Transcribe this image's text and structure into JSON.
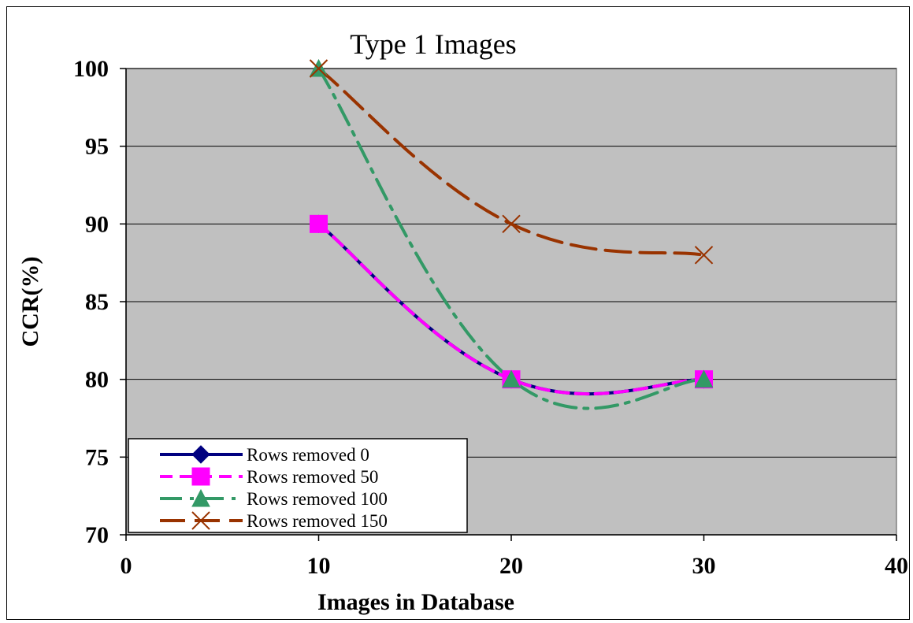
{
  "chart_data": {
    "type": "line",
    "title": "Type 1 Images",
    "xlabel": "Images in Database",
    "ylabel": "CCR(%)",
    "xlim": [
      0,
      40
    ],
    "ylim": [
      70,
      100
    ],
    "x_ticks": [
      0,
      10,
      20,
      30,
      40
    ],
    "y_ticks": [
      70,
      75,
      80,
      85,
      90,
      95,
      100
    ],
    "grid": "horizontal",
    "plot_background": "#c0c0c0",
    "legend_position": "bottom-left",
    "series": [
      {
        "name": "Rows removed 0",
        "x": [
          10,
          20,
          30
        ],
        "values": [
          90,
          80,
          80
        ],
        "color": "#000080",
        "marker": "diamond",
        "dash": "solid"
      },
      {
        "name": "Rows removed 50",
        "x": [
          10,
          20,
          30
        ],
        "values": [
          90,
          80,
          80
        ],
        "color": "#ff00ff",
        "marker": "square",
        "dash": "dash"
      },
      {
        "name": "Rows removed 100",
        "x": [
          10,
          20,
          30
        ],
        "values": [
          100,
          80,
          80
        ],
        "color": "#339966",
        "marker": "triangle",
        "dash": "dashdot"
      },
      {
        "name": "Rows removed 150",
        "x": [
          10,
          20,
          30
        ],
        "values": [
          100,
          90,
          88
        ],
        "color": "#993300",
        "marker": "x",
        "dash": "longdash"
      }
    ]
  }
}
